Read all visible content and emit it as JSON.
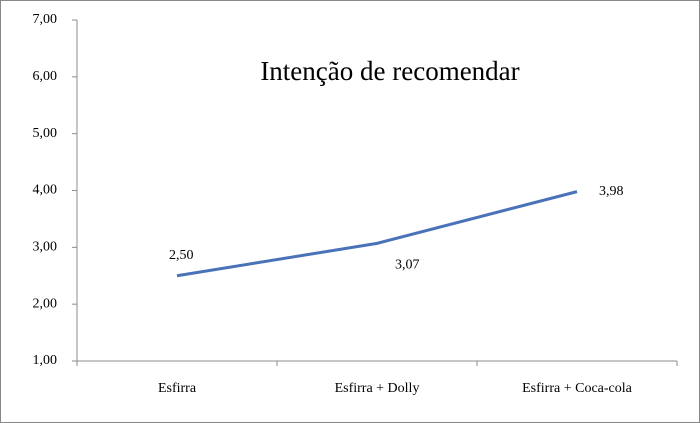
{
  "chart_data": {
    "type": "line",
    "title": "Intenção de recomendar",
    "categories": [
      "Esfirra",
      "Esfirra + Dolly",
      "Esfirra + Coca-cola"
    ],
    "series": [
      {
        "name": null,
        "color": "#4a72b8",
        "values": [
          2.5,
          3.07,
          3.98
        ],
        "value_labels": [
          "2,50",
          "3,07",
          "3,98"
        ]
      }
    ],
    "ylim": [
      1,
      7
    ],
    "yticks": [
      {
        "value": 1,
        "label": "1,00"
      },
      {
        "value": 2,
        "label": "2,00"
      },
      {
        "value": 3,
        "label": "3,00"
      },
      {
        "value": 4,
        "label": "4,00"
      },
      {
        "value": 5,
        "label": "5,00"
      },
      {
        "value": 6,
        "label": "6,00"
      },
      {
        "value": 7,
        "label": "7,00"
      }
    ],
    "grid": false
  }
}
